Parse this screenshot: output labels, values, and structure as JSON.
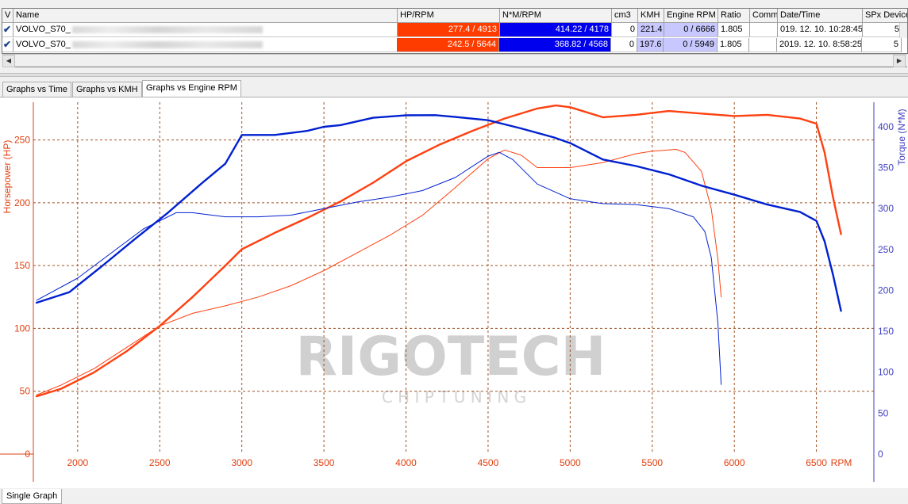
{
  "table": {
    "columns": [
      "V",
      "Name",
      "HP/RPM",
      "N*M/RPM",
      "cm3",
      "KMH",
      "Engine RPM",
      "Ratio",
      "Comm",
      "Date/Time",
      "SPx Device"
    ],
    "rows": [
      {
        "name": "VOLVO_S70_",
        "hp_rpm": "277.4 / 4913",
        "nm_rpm": "414.22 / 4178",
        "cm3": "0",
        "kmh": "221.4",
        "engine_rpm": "0 / 6666",
        "ratio": "1.805",
        "comm": "",
        "datetime": "019. 12. 10. 10:28:45",
        "spx": "5"
      },
      {
        "name": "VOLVO_S70_",
        "hp_rpm": "242.5 / 5644",
        "nm_rpm": "368.82 / 4568",
        "cm3": "0",
        "kmh": "197.6",
        "engine_rpm": "0 / 5949",
        "ratio": "1.805",
        "comm": "",
        "datetime": "2019. 12. 10. 8:58:25",
        "spx": "5"
      }
    ]
  },
  "tabs": [
    "Graphs vs Time",
    "Graphs vs KMH",
    "Graphs vs Engine RPM"
  ],
  "active_tab": "Graphs vs Engine RPM",
  "bottom_tab": "Single Graph",
  "watermark": {
    "line1": "RIGOTECH",
    "line2": "C H I P T U N I N G"
  },
  "colors": {
    "power": "#ff4010",
    "torque": "#0020d0",
    "grid": "#a05020",
    "left_axis": "#e04010",
    "right_axis": "#4040c0"
  },
  "chart_data": {
    "type": "line",
    "xlabel": "RPM",
    "ylabel": "Horsepower (HP)",
    "y2label": "Torque (N*M)",
    "xlim": [
      1730,
      6850
    ],
    "ylim": [
      0,
      280
    ],
    "y2lim": [
      0,
      430
    ],
    "xticks": [
      2000,
      2500,
      3000,
      3500,
      4000,
      4500,
      5000,
      5500,
      6000,
      6500
    ],
    "yticks": [
      0,
      50,
      100,
      150,
      200,
      250
    ],
    "y2ticks": [
      0,
      50,
      100,
      150,
      200,
      250,
      300,
      350,
      400
    ],
    "grid": true,
    "series": [
      {
        "axis": "left",
        "weight": "bold",
        "color": "#ff4010",
        "x": [
          1750,
          1900,
          2100,
          2300,
          2500,
          2700,
          2900,
          3000,
          3200,
          3400,
          3600,
          3800,
          4000,
          4200,
          4400,
          4600,
          4800,
          4913,
          5000,
          5200,
          5400,
          5600,
          5800,
          6000,
          6200,
          6400,
          6500,
          6550,
          6600,
          6650
        ],
        "y": [
          46,
          52,
          65,
          82,
          102,
          125,
          150,
          163,
          176,
          188,
          201,
          216,
          233,
          246,
          257,
          267,
          275,
          277.4,
          276,
          268,
          270,
          273,
          271,
          269,
          270,
          267,
          263,
          240,
          205,
          175
        ]
      },
      {
        "axis": "left",
        "weight": "thin",
        "color": "#ff4010",
        "x": [
          1750,
          1900,
          2100,
          2300,
          2500,
          2700,
          2900,
          3100,
          3300,
          3500,
          3700,
          3900,
          4100,
          4300,
          4500,
          4600,
          4700,
          4800,
          5000,
          5200,
          5400,
          5500,
          5644,
          5700,
          5800,
          5860,
          5900,
          5920
        ],
        "y": [
          47,
          55,
          68,
          85,
          102,
          112,
          118,
          125,
          134,
          146,
          160,
          174,
          190,
          212,
          235,
          242,
          238,
          228,
          228,
          232,
          239,
          241,
          242.5,
          240,
          225,
          195,
          155,
          125
        ]
      },
      {
        "axis": "right",
        "weight": "bold",
        "color": "#0020d0",
        "x": [
          1750,
          1950,
          2150,
          2350,
          2550,
          2750,
          2900,
          3000,
          3200,
          3400,
          3500,
          3600,
          3800,
          4000,
          4178,
          4300,
          4500,
          4700,
          4900,
          5000,
          5200,
          5400,
          5600,
          5800,
          6000,
          6200,
          6400,
          6500,
          6550,
          6600,
          6650
        ],
        "y": [
          185,
          198,
          230,
          263,
          295,
          330,
          355,
          390,
          390,
          395,
          400,
          402,
          411,
          414,
          414.2,
          412,
          408,
          398,
          387,
          380,
          360,
          352,
          342,
          328,
          317,
          305,
          296,
          285,
          260,
          220,
          175
        ]
      },
      {
        "axis": "right",
        "weight": "thin",
        "color": "#0020d0",
        "x": [
          1750,
          2000,
          2200,
          2400,
          2600,
          2700,
          2900,
          3100,
          3300,
          3500,
          3700,
          3900,
          4100,
          4300,
          4500,
          4568,
          4650,
          4800,
          5000,
          5200,
          5400,
          5600,
          5750,
          5820,
          5860,
          5900,
          5920
        ],
        "y": [
          188,
          215,
          245,
          275,
          295,
          295,
          290,
          290,
          292,
          300,
          308,
          314,
          322,
          338,
          364,
          368.8,
          360,
          330,
          312,
          306,
          305,
          300,
          290,
          272,
          240,
          160,
          85
        ]
      }
    ]
  }
}
